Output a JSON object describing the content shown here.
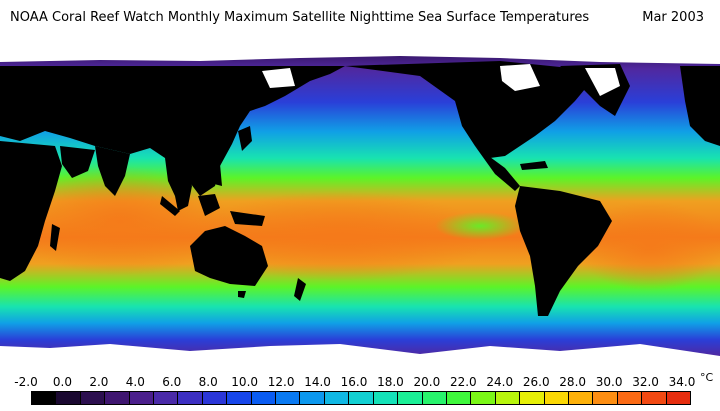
{
  "header": {
    "title": "NOAA Coral Reef Watch Monthly Maximum Satellite Nighttime Sea Surface Temperatures",
    "date": "Mar 2003"
  },
  "legend": {
    "ticks": [
      "-2.0",
      "0.0",
      "2.0",
      "4.0",
      "6.0",
      "8.0",
      "10.0",
      "12.0",
      "14.0",
      "16.0",
      "18.0",
      "20.0",
      "22.0",
      "24.0",
      "26.0",
      "28.0",
      "30.0",
      "32.0",
      "34.0"
    ],
    "unit": "°C",
    "colors": [
      "#000000",
      "#1a0830",
      "#2c0f4f",
      "#3f1670",
      "#4b1f8c",
      "#4a2aa8",
      "#3c2fc2",
      "#2b36d8",
      "#1746ea",
      "#0a5cf2",
      "#0a7af2",
      "#0c98ee",
      "#10b8e4",
      "#12d0d2",
      "#14e2b8",
      "#1bef96",
      "#28f36c",
      "#3ff73c",
      "#7bf717",
      "#b8f50d",
      "#e6ef07",
      "#fbd804",
      "#fdb10a",
      "#fd8e12",
      "#fb6a14",
      "#f24912",
      "#e62d0e"
    ]
  },
  "map": {
    "colors": {
      "land": "#000000",
      "ice": "#ffffff",
      "polar": "#2a0d4a",
      "cold": "#5028a0",
      "cool": "#2a3fd8",
      "mild": "#10a0e6",
      "temperate": "#18e3b0",
      "warm": "#5cf428",
      "hot": "#f0a020",
      "hottest": "#f57a1a"
    }
  }
}
